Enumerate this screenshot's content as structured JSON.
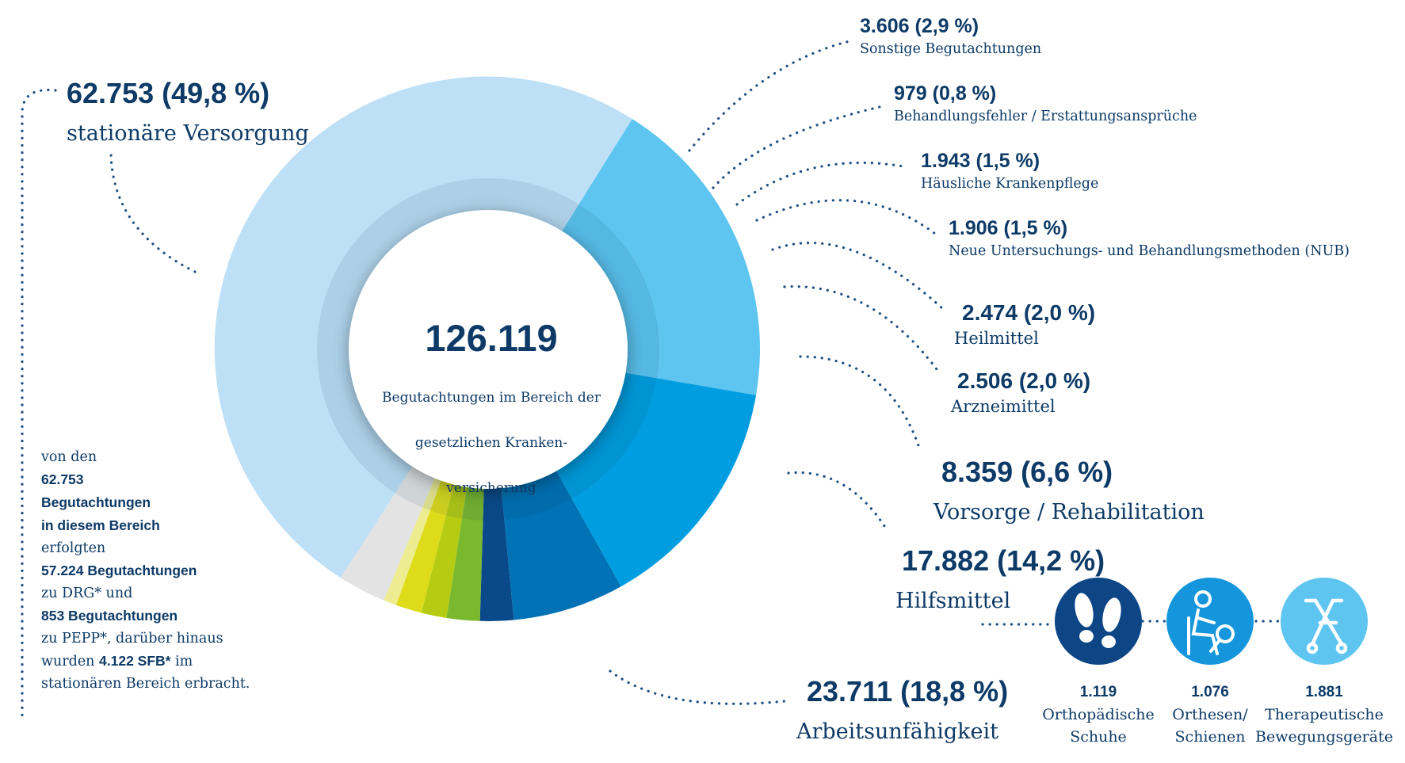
{
  "chart_data": {
    "type": "pie",
    "total": "126.119",
    "total_label": "Begutachtungen im Bereich der gesetzlichen Kranken- versicherung",
    "slices": [
      {
        "name": "stationäre Versorgung",
        "value": 62753,
        "value_label": "62.753 (49,8 %)",
        "color": "#bde0f7"
      },
      {
        "name": "Arbeitsunfähigkeit",
        "value": 23711,
        "value_label": "23.711 (18,8 %)",
        "color": "#5ec5f1"
      },
      {
        "name": "Hilfsmittel",
        "value": 17882,
        "value_label": "17.882 (14,2 %)",
        "color": "#009ee0"
      },
      {
        "name": "Vorsorge / Rehabilitation",
        "value": 8359,
        "value_label": "8.359 (6,6 %)",
        "color": "#0072b5"
      },
      {
        "name": "Arzneimittel",
        "value": 2506,
        "value_label": "2.506 (2,0 %)",
        "color": "#0a4a8a"
      },
      {
        "name": "Heilmittel",
        "value": 2474,
        "value_label": "2.474 (2,0 %)",
        "color": "#7ab82e"
      },
      {
        "name": "Neue Untersuchungs- und Behandlungsmethoden (NUB)",
        "value": 1906,
        "value_label": "1.906 (1,5 %)",
        "color": "#b6cc12"
      },
      {
        "name": "Häusliche Krankenpflege",
        "value": 1943,
        "value_label": "1.943 (1,5 %)",
        "color": "#dedc1a"
      },
      {
        "name": "Behandlungsfehler / Erstattungsansprüche",
        "value": 979,
        "value_label": "979 (0,8 %)",
        "color": "#eeec90"
      },
      {
        "name": "Sonstige Begutachtungen",
        "value": 3606,
        "value_label": "3.606 (2,9 %)",
        "color": "#e3e3e3"
      }
    ],
    "hilfsmittel_breakdown": [
      {
        "value": "1.119",
        "label_line1": "Orthopädische",
        "label_line2": "Schuhe",
        "icon": "shoe-prints-icon",
        "color": "#0d4585"
      },
      {
        "value": "1.076",
        "label_line1": "Orthesen/",
        "label_line2": "Schienen",
        "icon": "orthosis-icon",
        "color": "#1596dc"
      },
      {
        "value": "1.881",
        "label_line1": "Therapeutische",
        "label_line2": "Bewegungsgeräte",
        "icon": "walker-icon",
        "color": "#5ec5f1"
      }
    ]
  },
  "note": {
    "line1": "von den",
    "line2": "62.753",
    "line3": "Begutachtungen",
    "line4": "in diesem Bereich",
    "line5": "erfolgten",
    "line6": "57.224 Begutachtungen",
    "line7": "zu DRG* und",
    "line8": "853 Begutachtungen",
    "line9": "zu PEPP*, darüber hinaus",
    "line10a": "wurden ",
    "line10b": "4.122 SFB*",
    "line10c": " im",
    "line11": "stationären Bereich erbracht."
  }
}
